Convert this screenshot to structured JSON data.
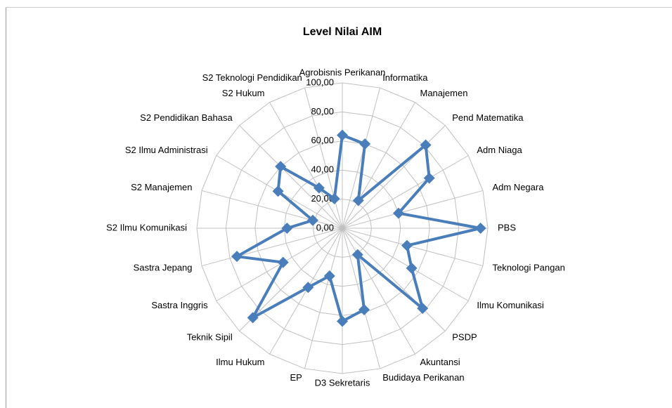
{
  "chart_data": {
    "type": "radar",
    "title": "Level Nilai AIM",
    "categories": [
      "Agrobisnis Perikanan",
      "Informatika",
      "Manajemen",
      "Pend Matematika",
      "Adm Niaga",
      "Adm Negara",
      "PBS",
      "Teknologi Pangan",
      "Ilmu Komunikasi",
      "PSDP",
      "Akuntansi",
      "Budidaya Perikanan",
      "D3 Sekretaris",
      "EP",
      "Ilmu Hukum",
      "Teknik Sipil",
      "Sastra Inggris",
      "Sastra Jepang",
      "S2 Ilmu Komunikasi",
      "S2 Manajemen",
      "S2 Ilmu Administrasi",
      "S2 Pendidikan Bahasa",
      "S2 Hukum",
      "S2 Teknologi Pendidikan"
    ],
    "values": [
      64,
      60,
      22,
      81,
      69,
      40,
      95,
      46,
      55,
      78,
      21,
      58,
      64,
      34,
      47,
      87,
      47,
      75,
      38,
      21,
      51,
      60,
      32,
      21
    ],
    "color": "#4a7ebb",
    "ylim": [
      0,
      100
    ],
    "yticks": [
      {
        "value": 0,
        "label": "0,00"
      },
      {
        "value": 20,
        "label": "20,00"
      },
      {
        "value": 40,
        "label": "40,00"
      },
      {
        "value": 60,
        "label": "60,00"
      },
      {
        "value": 80,
        "label": "80,00"
      },
      {
        "value": 100,
        "label": "100,00"
      }
    ],
    "grid": true
  }
}
